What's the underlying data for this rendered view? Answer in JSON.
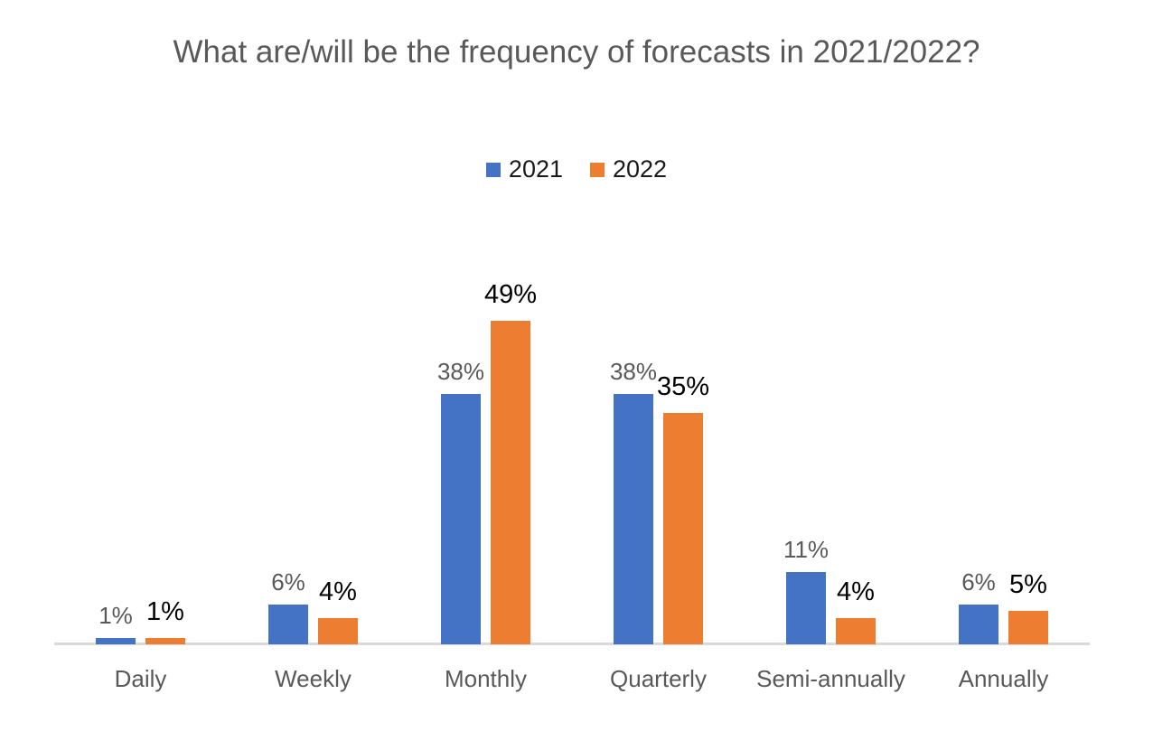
{
  "title": "What are/will be the frequency of forecasts in 2021/2022?",
  "colors": {
    "series_2021": "#4472C4",
    "series_2022": "#ED7D31",
    "axis_line": "#D9D9D9",
    "title_text": "#595959",
    "category_text": "#595959",
    "label_2021_text": "#595959",
    "label_2022_text": "#000000",
    "background": "#FFFFFF"
  },
  "chart_data": {
    "type": "bar",
    "title": "What are/will be the frequency of forecasts in 2021/2022?",
    "categories": [
      "Daily",
      "Weekly",
      "Monthly",
      "Quarterly",
      "Semi-annually",
      "Annually"
    ],
    "series": [
      {
        "name": "2021",
        "color": "#4472C4",
        "values": [
          1,
          6,
          38,
          38,
          11,
          6
        ],
        "labels": [
          "1%",
          "6%",
          "38%",
          "38%",
          "11%",
          "6%"
        ]
      },
      {
        "name": "2022",
        "color": "#ED7D31",
        "values": [
          1,
          4,
          49,
          35,
          4,
          5
        ],
        "labels": [
          "1%",
          "4%",
          "49%",
          "35%",
          "4%",
          "5%"
        ]
      }
    ],
    "value_unit": "%",
    "xlabel": "",
    "ylabel": "",
    "ylim": [
      0,
      55
    ],
    "grid": false,
    "y_axis_visible": false,
    "data_labels": true,
    "legend_position": "top"
  }
}
